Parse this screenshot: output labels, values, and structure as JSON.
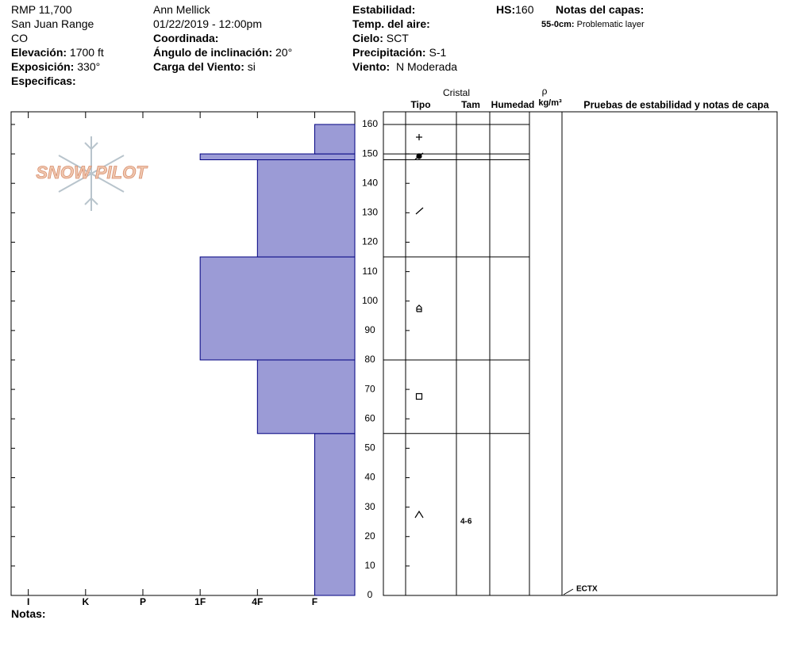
{
  "header": {
    "location": "RMP 11,700",
    "range": "San Juan Range",
    "state": "CO",
    "elevation": {
      "label": "Elevación:",
      "value": "1700 ft"
    },
    "aspect": {
      "label": "Exposición:",
      "value": "330°"
    },
    "specifics": {
      "label": "Especificas:"
    },
    "observer": "Ann Mellick",
    "datetime": "01/22/2019 - 12:00pm",
    "coordinates": {
      "label": "Coordinada:"
    },
    "slope_angle": {
      "label": "Ángulo de inclinación:",
      "value": "20°"
    },
    "wind_loading": {
      "label": "Carga del Viento:",
      "value": "si"
    },
    "stability": {
      "label": "Estabilidad:"
    },
    "air_temp": {
      "label": "Temp. del aire:"
    },
    "sky": {
      "label": "Cielo:",
      "value": "SCT"
    },
    "precipitation": {
      "label": "Precipitación:",
      "value": "S-1"
    },
    "wind": {
      "label": "Viento:",
      "value": "N Moderada"
    },
    "hs": {
      "label": "HS:",
      "value": 160
    },
    "layer_notes": {
      "label": "Notas del capas:",
      "items": [
        {
          "range": "55-0cm:",
          "note": "Problematic layer"
        }
      ]
    }
  },
  "logo": "SNOW PILOT",
  "chart_data": {
    "type": "snow-profile",
    "color": "#9b9bd6",
    "xlim": [
      0.3,
      6.3
    ],
    "xticks": [
      {
        "value": 6,
        "label": "I"
      },
      {
        "value": 5,
        "label": "K"
      },
      {
        "value": 4,
        "label": "P"
      },
      {
        "value": 3,
        "label": "1F"
      },
      {
        "value": 2,
        "label": "4F"
      },
      {
        "value": 1,
        "label": "F"
      }
    ],
    "ylim": [
      0,
      164.3
    ],
    "yticks": [
      0,
      10,
      20,
      30,
      40,
      50,
      60,
      70,
      80,
      90,
      100,
      110,
      120,
      130,
      140,
      150,
      160
    ],
    "layers": [
      {
        "bottom": 0,
        "top": 55,
        "hardness": 1,
        "size": "4-6"
      },
      {
        "bottom": 55,
        "top": 80,
        "hardness": 2
      },
      {
        "bottom": 80,
        "top": 115,
        "hardness": 3
      },
      {
        "bottom": 115,
        "top": 148,
        "hardness": 2
      },
      {
        "bottom": 148,
        "top": 150,
        "hardness": 3
      },
      {
        "bottom": 150,
        "top": 160,
        "hardness": 1
      }
    ],
    "crystal_header": "Cristal",
    "columns": [
      "Tipo",
      "Tam",
      "Humedad"
    ],
    "density": {
      "symbol": "ρ",
      "unit": "kg/m³"
    },
    "tests_header": "Pruebas de estabilidad y notas de capa",
    "tests": [
      {
        "height": 0,
        "label": "ECTX"
      }
    ]
  },
  "footer": {
    "notes": "Notas:"
  }
}
